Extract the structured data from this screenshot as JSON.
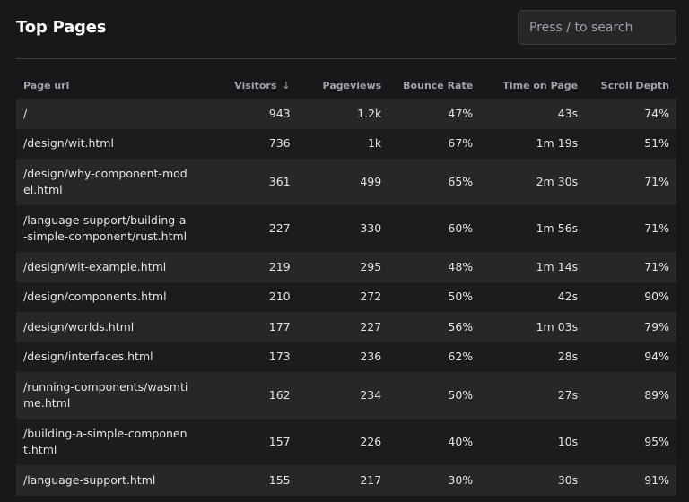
{
  "header": {
    "title": "Top Pages",
    "search_placeholder": "Press / to search"
  },
  "table": {
    "columns": [
      "Page url",
      "Visitors",
      "Pageviews",
      "Bounce Rate",
      "Time on Page",
      "Scroll Depth"
    ],
    "sort_indicator": "↓",
    "rows": [
      {
        "url": "/",
        "visitors": "943",
        "pageviews": "1.2k",
        "bounce": "47%",
        "time": "43s",
        "scroll": "74%"
      },
      {
        "url": "/design/wit.html",
        "visitors": "736",
        "pageviews": "1k",
        "bounce": "67%",
        "time": "1m 19s",
        "scroll": "51%"
      },
      {
        "url": "/design/why-component-model.html",
        "visitors": "361",
        "pageviews": "499",
        "bounce": "65%",
        "time": "2m 30s",
        "scroll": "71%"
      },
      {
        "url": "/language-support/building-a-simple-component/rust.html",
        "visitors": "227",
        "pageviews": "330",
        "bounce": "60%",
        "time": "1m 56s",
        "scroll": "71%"
      },
      {
        "url": "/design/wit-example.html",
        "visitors": "219",
        "pageviews": "295",
        "bounce": "48%",
        "time": "1m 14s",
        "scroll": "71%"
      },
      {
        "url": "/design/components.html",
        "visitors": "210",
        "pageviews": "272",
        "bounce": "50%",
        "time": "42s",
        "scroll": "90%"
      },
      {
        "url": "/design/worlds.html",
        "visitors": "177",
        "pageviews": "227",
        "bounce": "56%",
        "time": "1m 03s",
        "scroll": "79%"
      },
      {
        "url": "/design/interfaces.html",
        "visitors": "173",
        "pageviews": "236",
        "bounce": "62%",
        "time": "28s",
        "scroll": "94%"
      },
      {
        "url": "/running-components/wasmtime.html",
        "visitors": "162",
        "pageviews": "234",
        "bounce": "50%",
        "time": "27s",
        "scroll": "89%"
      },
      {
        "url": "/building-a-simple-component.html",
        "visitors": "157",
        "pageviews": "226",
        "bounce": "40%",
        "time": "10s",
        "scroll": "95%"
      },
      {
        "url": "/language-support.html",
        "visitors": "155",
        "pageviews": "217",
        "bounce": "30%",
        "time": "30s",
        "scroll": "91%"
      }
    ]
  }
}
